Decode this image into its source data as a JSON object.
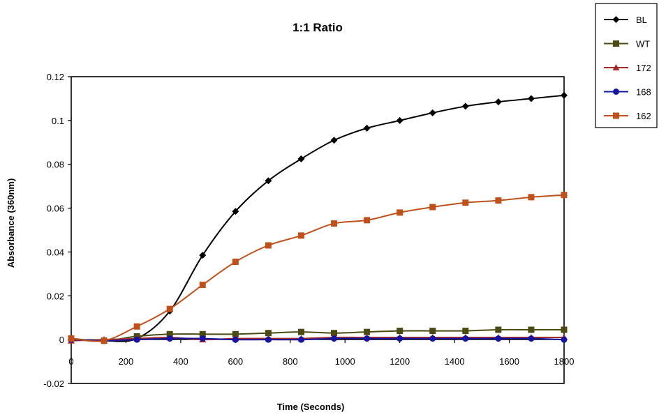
{
  "chart_data": {
    "type": "line",
    "title": "1:1 Ratio",
    "xlabel": "Time (Seconds)",
    "ylabel": "Absorbance (360nm)",
    "xlim": [
      0,
      1800
    ],
    "ylim": [
      -0.02,
      0.12
    ],
    "x_ticks": [
      "0",
      "200",
      "400",
      "600",
      "800",
      "1000",
      "1200",
      "1400",
      "1600",
      "1800"
    ],
    "y_ticks": [
      "-0.02",
      "0",
      "0.02",
      "0.04",
      "0.06",
      "0.08",
      "0.1",
      "0.12"
    ],
    "grid": false,
    "legend_position": "top-right, outside plot",
    "x": [
      0,
      120,
      240,
      360,
      480,
      600,
      720,
      840,
      960,
      1080,
      1200,
      1320,
      1440,
      1560,
      1680,
      1800
    ],
    "series": [
      {
        "name": "BL",
        "color": "#000000",
        "marker": "diamond",
        "values": [
          0.0,
          -0.0005,
          0.0005,
          0.013,
          0.0385,
          0.0585,
          0.0725,
          0.0825,
          0.091,
          0.0965,
          0.1,
          0.1035,
          0.1065,
          0.1085,
          0.11,
          0.1115
        ]
      },
      {
        "name": "WT",
        "color": "#4a4a12",
        "marker": "square",
        "values": [
          0.0005,
          -0.0005,
          0.0015,
          0.0025,
          0.0025,
          0.0025,
          0.003,
          0.0035,
          0.003,
          0.0035,
          0.004,
          0.004,
          0.004,
          0.0045,
          0.0045,
          0.0045
        ]
      },
      {
        "name": "172",
        "color": "#a52a2a",
        "marker": "triangle",
        "values": [
          -0.0005,
          0.0,
          0.0005,
          0.001,
          0.0,
          0.0005,
          0.0005,
          0.0005,
          0.001,
          0.001,
          0.001,
          0.001,
          0.001,
          0.001,
          0.001,
          0.001
        ]
      },
      {
        "name": "168",
        "color": "#1414a0",
        "marker": "circle",
        "values": [
          0.0,
          -0.0005,
          0.0,
          0.0005,
          0.0005,
          0.0,
          0.0,
          0.0,
          0.0005,
          0.0005,
          0.0005,
          0.0005,
          0.0005,
          0.0005,
          0.0005,
          0.0
        ]
      },
      {
        "name": "162",
        "color": "#c0501a",
        "marker": "square",
        "values": [
          0.0005,
          -0.0005,
          0.006,
          0.014,
          0.025,
          0.0355,
          0.043,
          0.0475,
          0.053,
          0.0545,
          0.058,
          0.0605,
          0.0625,
          0.0635,
          0.065,
          0.066
        ]
      }
    ]
  }
}
